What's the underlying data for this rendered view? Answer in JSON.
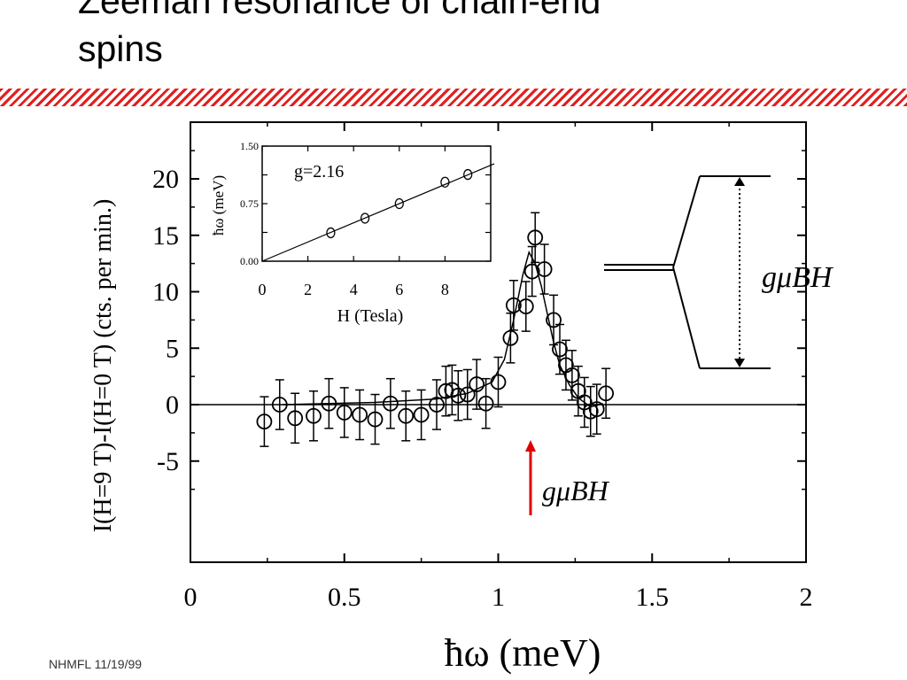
{
  "slide": {
    "title_line1": "Zeeman resonance of chain-end",
    "title_line2": "spins",
    "footer": "NHMFL  11/19/99"
  },
  "chart_data": [
    {
      "type": "scatter",
      "title": "",
      "xlabel": "ħω   (meV)",
      "ylabel": "I(H=9 T)-I(H=0 T)  (cts. per min.)",
      "xlim": [
        0,
        2
      ],
      "ylim": [
        -10,
        24
      ],
      "xticks": [
        "0",
        "0.5",
        "1",
        "1.5",
        "2"
      ],
      "yticks": [
        "-5",
        "0",
        "5",
        "10",
        "15",
        "20"
      ],
      "ytick_values": [
        -5,
        0,
        5,
        10,
        15,
        20
      ],
      "baseline": 0,
      "points": [
        {
          "x": 0.24,
          "y": -1.5,
          "err": 2
        },
        {
          "x": 0.29,
          "y": 0,
          "err": 2
        },
        {
          "x": 0.34,
          "y": -1.2,
          "err": 2
        },
        {
          "x": 0.4,
          "y": -1.0,
          "err": 2
        },
        {
          "x": 0.45,
          "y": 0.1,
          "err": 2
        },
        {
          "x": 0.5,
          "y": -0.7,
          "err": 2
        },
        {
          "x": 0.55,
          "y": -0.9,
          "err": 2
        },
        {
          "x": 0.6,
          "y": -1.3,
          "err": 2
        },
        {
          "x": 0.65,
          "y": 0.1,
          "err": 2
        },
        {
          "x": 0.7,
          "y": -1.0,
          "err": 2
        },
        {
          "x": 0.75,
          "y": -0.9,
          "err": 2
        },
        {
          "x": 0.8,
          "y": 0,
          "err": 2
        },
        {
          "x": 0.83,
          "y": 1.2,
          "err": 2
        },
        {
          "x": 0.85,
          "y": 1.3,
          "err": 2
        },
        {
          "x": 0.87,
          "y": 0.8,
          "err": 2
        },
        {
          "x": 0.9,
          "y": 0.9,
          "err": 2
        },
        {
          "x": 0.93,
          "y": 1.8,
          "err": 2
        },
        {
          "x": 0.96,
          "y": 0.1,
          "err": 2
        },
        {
          "x": 1.0,
          "y": 2.0,
          "err": 2
        },
        {
          "x": 1.04,
          "y": 5.9,
          "err": 2
        },
        {
          "x": 1.05,
          "y": 8.8,
          "err": 2
        },
        {
          "x": 1.09,
          "y": 8.7,
          "err": 2
        },
        {
          "x": 1.11,
          "y": 11.8,
          "err": 2
        },
        {
          "x": 1.12,
          "y": 14.8,
          "err": 2
        },
        {
          "x": 1.15,
          "y": 12,
          "err": 2
        },
        {
          "x": 1.18,
          "y": 7.5,
          "err": 2
        },
        {
          "x": 1.2,
          "y": 4.9,
          "err": 2
        },
        {
          "x": 1.22,
          "y": 3.5,
          "err": 2
        },
        {
          "x": 1.24,
          "y": 2.6,
          "err": 2
        },
        {
          "x": 1.26,
          "y": 1.2,
          "err": 2
        },
        {
          "x": 1.28,
          "y": 0.2,
          "err": 2
        },
        {
          "x": 1.3,
          "y": -0.6,
          "err": 2
        },
        {
          "x": 1.32,
          "y": -0.4,
          "err": 2
        },
        {
          "x": 1.35,
          "y": 1.0,
          "err": 2
        }
      ],
      "fit": {
        "x": [
          0.3,
          0.6,
          0.8,
          0.9,
          0.98,
          1.02,
          1.05,
          1.08,
          1.1,
          1.12,
          1.14,
          1.16,
          1.18,
          1.2,
          1.23,
          1.26,
          1.3,
          1.34
        ],
        "y": [
          0,
          0.2,
          0.5,
          1.0,
          2.0,
          4.0,
          7.5,
          11.5,
          13.5,
          12.5,
          10.5,
          8.0,
          5.5,
          3.5,
          1.8,
          0.6,
          -0.2,
          0.1
        ]
      },
      "annotations": {
        "arrow_label": "gμBH",
        "arrow_x": 1.12,
        "level_label": "gμBH"
      }
    },
    {
      "type": "scatter",
      "inset": true,
      "xlabel": "H (Tesla)",
      "ylabel": "ħω  (meV)",
      "xlim": [
        0,
        10
      ],
      "ylim": [
        0,
        1.5
      ],
      "xticks": [
        "0",
        "2",
        "4",
        "6",
        "8"
      ],
      "yticks": [
        "0.00",
        "0.75",
        "1.50"
      ],
      "annotation": "g=2.16",
      "points": [
        {
          "x": 3,
          "y": 0.37
        },
        {
          "x": 4.5,
          "y": 0.56
        },
        {
          "x": 6,
          "y": 0.75
        },
        {
          "x": 8,
          "y": 1.03
        },
        {
          "x": 9,
          "y": 1.13
        }
      ],
      "fit_slope": 0.125
    }
  ]
}
